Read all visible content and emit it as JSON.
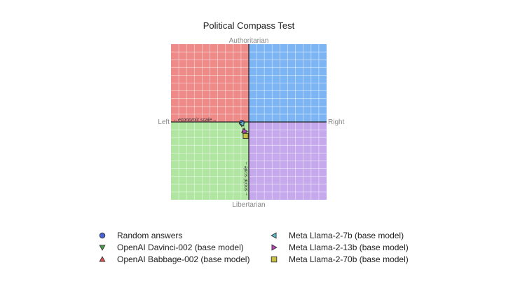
{
  "chart_data": {
    "type": "scatter",
    "title": "Political Compass Test",
    "axes": {
      "top": "Authoritarian",
      "bottom": "Libertarian",
      "left": "Left",
      "right": "Right",
      "economic_scale_label": "←economic scale→",
      "social_scale_label": "←social scale→"
    },
    "xlim": [
      -10,
      10
    ],
    "ylim": [
      -10,
      10
    ],
    "grid": true,
    "quadrant_colors": {
      "authoritarian_left": "#ee8a88",
      "authoritarian_right": "#7db5f4",
      "libertarian_left": "#b0e6a2",
      "libertarian_right": "#c6a9ec"
    },
    "legend_position": "bottom",
    "series": [
      {
        "name": "Random answers",
        "marker": "circle",
        "color": "#4a64d8",
        "x": -0.9,
        "y": -0.1
      },
      {
        "name": "OpenAI Davinci-002 (base model)",
        "marker": "triangle-down",
        "color": "#4aa04a",
        "x": -0.9,
        "y": -0.3
      },
      {
        "name": "OpenAI Babbage-002 (base model)",
        "marker": "triangle-up",
        "color": "#e05050",
        "x": -0.6,
        "y": -1.1
      },
      {
        "name": "Meta Llama-2-7b (base model)",
        "marker": "triangle-left",
        "color": "#5bbfcf",
        "x": -0.9,
        "y": -0.2
      },
      {
        "name": "Meta Llama-2-13b (base model)",
        "marker": "triangle-right",
        "color": "#c040c0",
        "x": -0.5,
        "y": -1.2
      },
      {
        "name": "Meta Llama-2-70b (base model)",
        "marker": "square",
        "color": "#c8c040",
        "x": -0.4,
        "y": -1.8
      }
    ]
  }
}
